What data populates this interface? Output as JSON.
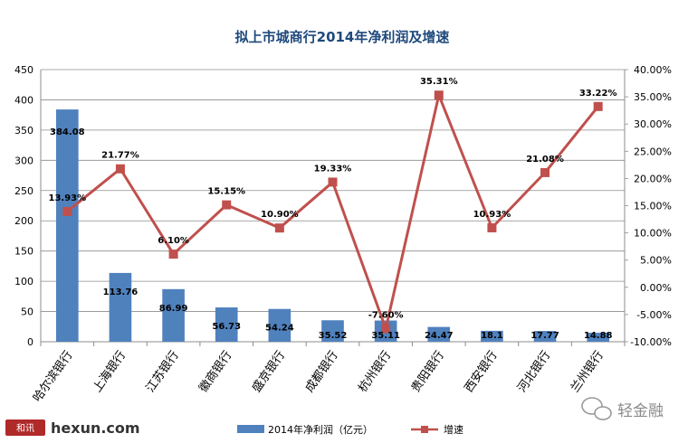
{
  "chart_data": {
    "type": "bar+line",
    "title": "拟上市城商行2014年净利润及增速",
    "categories": [
      "哈尔滨银行",
      "上海银行",
      "江苏银行",
      "徽商银行",
      "盛京银行",
      "成都银行",
      "杭州银行",
      "贵阳银行",
      "西安银行",
      "河北银行",
      "兰州银行"
    ],
    "series": [
      {
        "name": "2014年净利润（亿元）",
        "kind": "bar",
        "axis": "left",
        "color": "#4f81bd",
        "values": [
          384.08,
          113.76,
          86.99,
          56.73,
          54.24,
          35.52,
          35.11,
          24.47,
          18.1,
          17.77,
          14.88
        ],
        "labels": [
          "384.08",
          "113.76",
          "86.99",
          "56.73",
          "54.24",
          "35.52",
          "35.11",
          "24.47",
          "18.1",
          "17.77",
          "14.88"
        ]
      },
      {
        "name": "增速",
        "kind": "line",
        "axis": "right",
        "color": "#c0504d",
        "values": [
          13.93,
          21.77,
          6.1,
          15.15,
          10.9,
          19.33,
          -7.6,
          35.31,
          10.93,
          21.08,
          33.22
        ],
        "labels": [
          "13.93%",
          "21.77%",
          "6.10%",
          "15.15%",
          "10.90%",
          "19.33%",
          "-7.60%",
          "35.31%",
          "10.93%",
          "21.08%",
          "33.22%"
        ]
      }
    ],
    "y_left": {
      "min": 0,
      "max": 450,
      "step": 50,
      "ticks": [
        "0",
        "50",
        "100",
        "150",
        "200",
        "250",
        "300",
        "350",
        "400",
        "450"
      ]
    },
    "y_right": {
      "min": -10,
      "max": 40,
      "step": 5,
      "ticks": [
        "-10.00%",
        "-5.00%",
        "0.00%",
        "5.00%",
        "10.00%",
        "15.00%",
        "20.00%",
        "25.00%",
        "30.00%",
        "35.00%",
        "40.00%"
      ]
    },
    "grid": true,
    "legend": {
      "position": "bottom",
      "items": [
        "2014年净利润（亿元）",
        "增速"
      ]
    }
  },
  "watermarks": {
    "source_logo": "和讯",
    "source_site": "hexun.com",
    "wechat_account": "轻金融"
  }
}
